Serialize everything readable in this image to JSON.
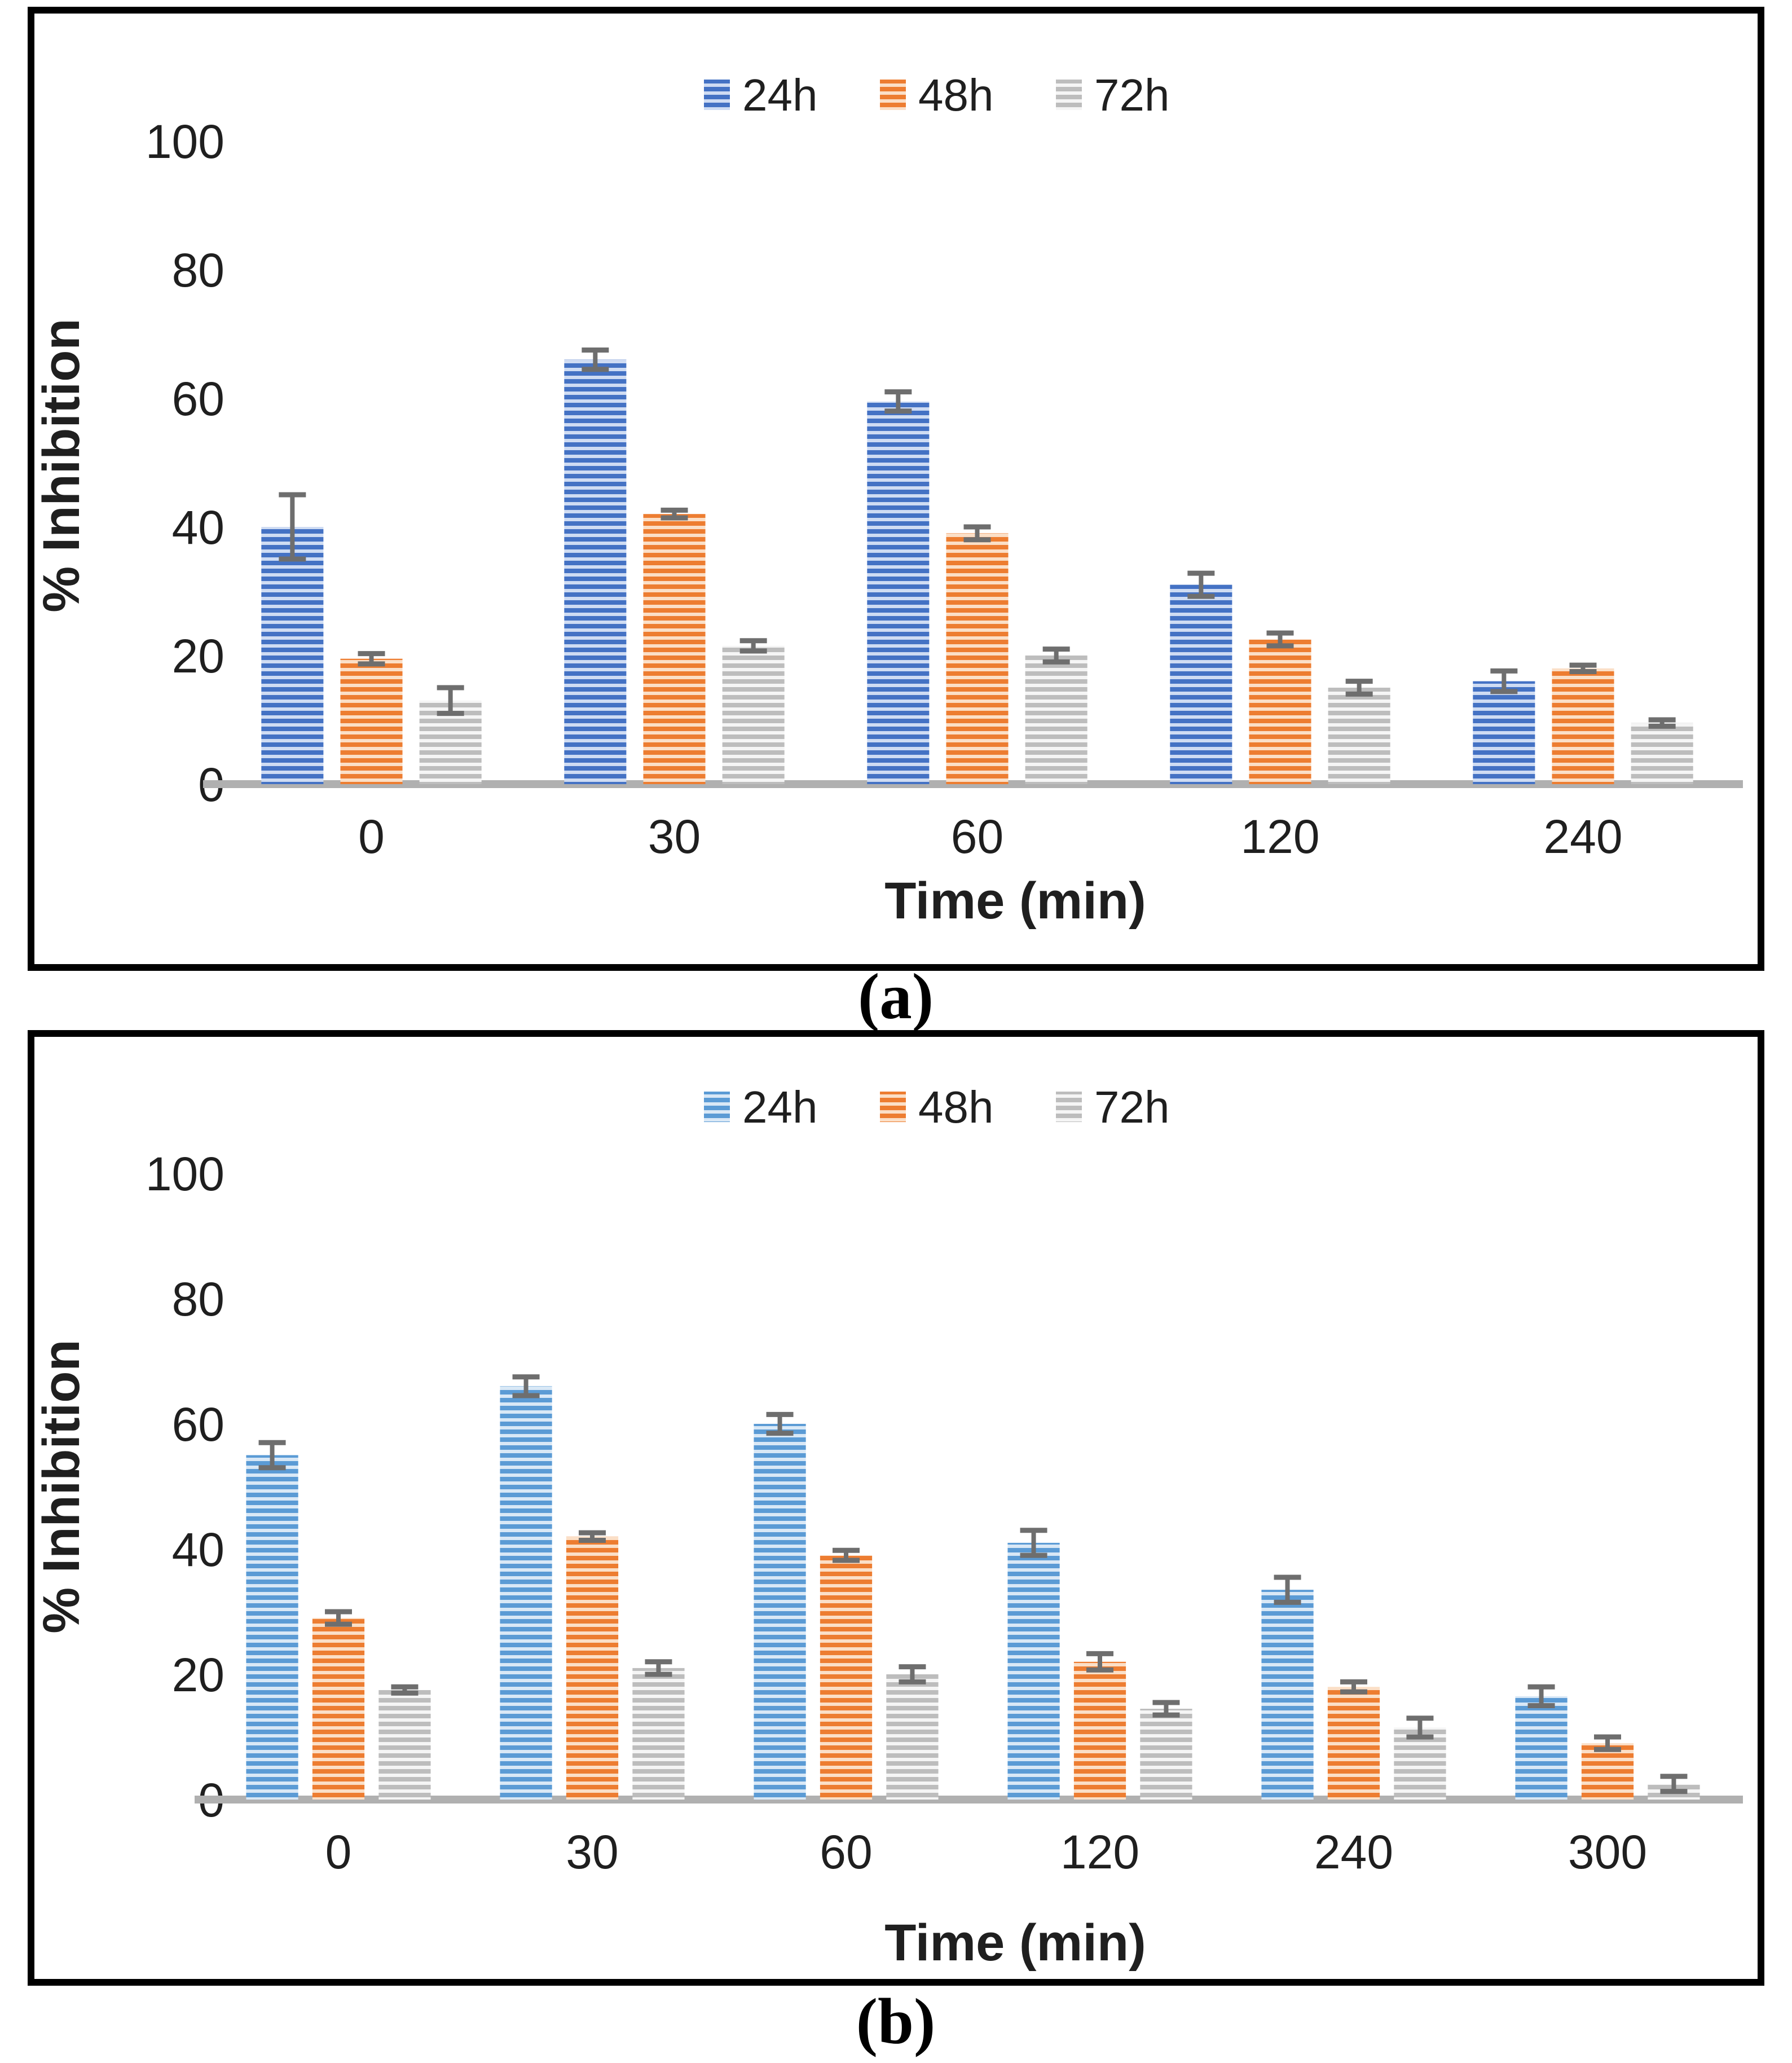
{
  "figure": {
    "panels": [
      {
        "caption": "(a)"
      },
      {
        "caption": "(b)"
      }
    ]
  },
  "colors": {
    "error_bar": "#6e6e6e",
    "baseline": "#b0b0b0",
    "panel_border": "#000000",
    "text": "#1f1f1f",
    "series_blue_dark": "#4472C4",
    "series_blue_light": "#5B9BD5",
    "series_orange": "#ED7D31",
    "series_gray": "#BFBFBF"
  },
  "chart_data": [
    {
      "type": "bar",
      "title": "",
      "xlabel": "Time (min)",
      "ylabel": "% Inhibition",
      "ylim": [
        0,
        100
      ],
      "yticks": [
        0,
        20,
        40,
        60,
        80,
        100
      ],
      "grid": false,
      "legend_position": "top-center",
      "categories": [
        "0",
        "30",
        "60",
        "120",
        "240"
      ],
      "series": [
        {
          "name": "24h",
          "color": "#4472C4",
          "stripe_color": "#cfdcf3",
          "values": [
            40,
            66,
            59.5,
            31,
            16
          ],
          "errors": [
            5,
            1.5,
            1.5,
            1.8,
            1.6
          ]
        },
        {
          "name": "48h",
          "color": "#ED7D31",
          "stripe_color": "#fbdfc7",
          "values": [
            19.5,
            42,
            39,
            22.5,
            18
          ],
          "errors": [
            0.8,
            0.6,
            1,
            1,
            0.5
          ]
        },
        {
          "name": "72h",
          "color": "#bdbdbd",
          "stripe_color": "#f5f5f5",
          "values": [
            13,
            21.5,
            20,
            15,
            9.5
          ],
          "errors": [
            2,
            0.8,
            1,
            1,
            0.5
          ]
        }
      ]
    },
    {
      "type": "bar",
      "title": "",
      "xlabel": "Time (min)",
      "ylabel": "% Inhibition",
      "ylim": [
        0,
        100
      ],
      "yticks": [
        0,
        20,
        40,
        60,
        80,
        100
      ],
      "grid": false,
      "legend_position": "top-center",
      "categories": [
        "0",
        "30",
        "60",
        "120",
        "240",
        "300"
      ],
      "series": [
        {
          "name": "24h",
          "color": "#5B9BD5",
          "stripe_color": "#d9e8f6",
          "values": [
            55,
            66,
            60,
            41,
            33.5,
            16.5
          ],
          "errors": [
            2,
            1.5,
            1.5,
            2,
            2,
            1.5
          ]
        },
        {
          "name": "48h",
          "color": "#ED7D31",
          "stripe_color": "#fbdfc7",
          "values": [
            29,
            42,
            39,
            22,
            18,
            9
          ],
          "errors": [
            1,
            0.6,
            0.8,
            1.3,
            0.8,
            1
          ]
        },
        {
          "name": "72h",
          "color": "#bdbdbd",
          "stripe_color": "#f5f5f5",
          "values": [
            17.5,
            21,
            20,
            14.5,
            11.5,
            2.5
          ],
          "errors": [
            0.5,
            1,
            1.2,
            1,
            1.5,
            1.2
          ]
        }
      ]
    }
  ]
}
